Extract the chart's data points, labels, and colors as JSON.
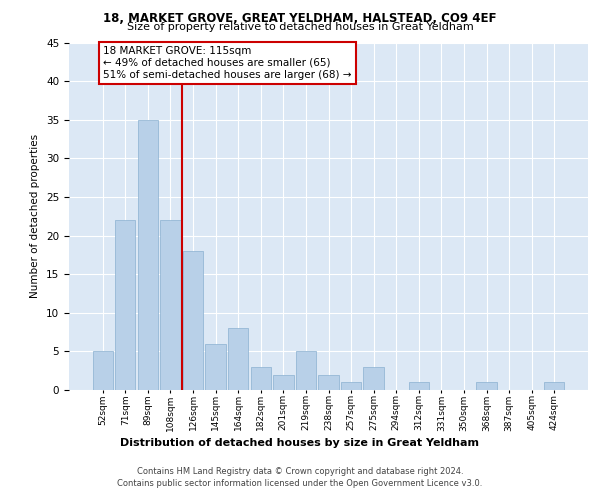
{
  "title": "18, MARKET GROVE, GREAT YELDHAM, HALSTEAD, CO9 4EF",
  "subtitle": "Size of property relative to detached houses in Great Yeldham",
  "xlabel": "Distribution of detached houses by size in Great Yeldham",
  "ylabel": "Number of detached properties",
  "categories": [
    "52sqm",
    "71sqm",
    "89sqm",
    "108sqm",
    "126sqm",
    "145sqm",
    "164sqm",
    "182sqm",
    "201sqm",
    "219sqm",
    "238sqm",
    "257sqm",
    "275sqm",
    "294sqm",
    "312sqm",
    "331sqm",
    "350sqm",
    "368sqm",
    "387sqm",
    "405sqm",
    "424sqm"
  ],
  "values": [
    5,
    22,
    35,
    22,
    18,
    6,
    8,
    3,
    2,
    5,
    2,
    1,
    3,
    0,
    1,
    0,
    0,
    1,
    0,
    0,
    1
  ],
  "bar_color": "#b8d0e8",
  "bar_edge_color": "#8ab0d0",
  "vline_x_idx": 3,
  "vline_color": "#cc0000",
  "annotation_title": "18 MARKET GROVE: 115sqm",
  "annotation_line1": "← 49% of detached houses are smaller (65)",
  "annotation_line2": "51% of semi-detached houses are larger (68) →",
  "ylim": [
    0,
    45
  ],
  "yticks": [
    0,
    5,
    10,
    15,
    20,
    25,
    30,
    35,
    40,
    45
  ],
  "footer1": "Contains HM Land Registry data © Crown copyright and database right 2024.",
  "footer2": "Contains public sector information licensed under the Open Government Licence v3.0.",
  "plot_bg": "#dce8f5"
}
